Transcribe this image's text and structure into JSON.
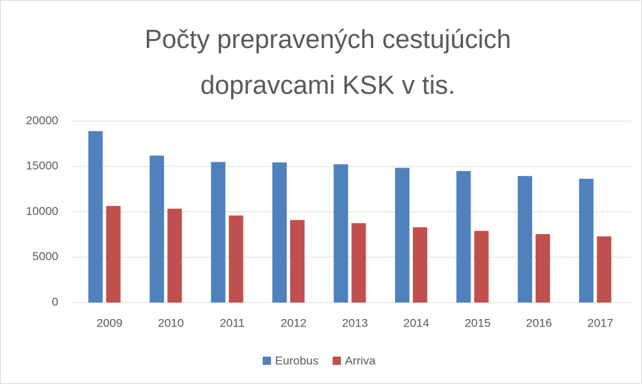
{
  "chart_data": {
    "type": "bar",
    "title": [
      "Počty prepravených cestujúcich",
      "dopravcami KSK v tis."
    ],
    "categories": [
      "2009",
      "2010",
      "2011",
      "2012",
      "2013",
      "2014",
      "2015",
      "2016",
      "2017"
    ],
    "series": [
      {
        "name": "Eurobus",
        "color": "#4f81bd",
        "values": [
          18900,
          16200,
          15500,
          15450,
          15250,
          14850,
          14500,
          13950,
          13650
        ]
      },
      {
        "name": "Arriva",
        "color": "#c0504d",
        "values": [
          10650,
          10350,
          9600,
          9100,
          8750,
          8300,
          7900,
          7550,
          7300
        ]
      }
    ],
    "ylim": [
      0,
      20000
    ],
    "yticks": [
      0,
      5000,
      10000,
      15000,
      20000
    ],
    "grid": true,
    "legend": "bottom"
  }
}
